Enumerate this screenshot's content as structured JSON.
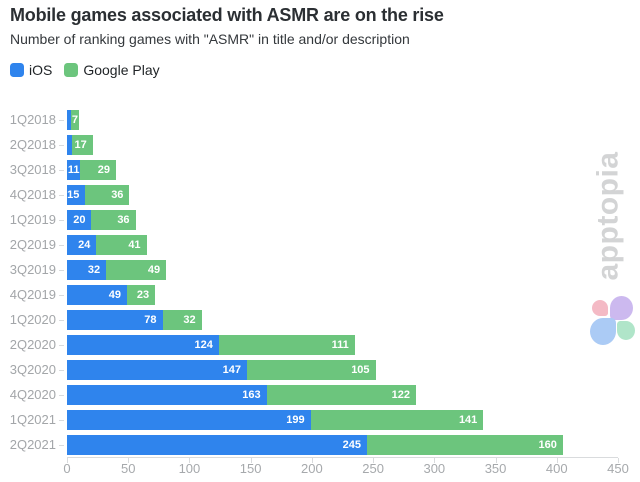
{
  "header": {
    "title": "Mobile games associated with ASMR are on the rise",
    "subtitle": "Number of ranking games with \"ASMR\" in title and/or description"
  },
  "legend": {
    "items": [
      {
        "label": "iOS",
        "color": "#2f84ed"
      },
      {
        "label": "Google Play",
        "color": "#6cc57d"
      }
    ]
  },
  "watermark": {
    "text": "apptopia",
    "text_color": "#d3d4d5",
    "logo_petal_colors": {
      "top_left": "#f4bac5",
      "top_right": "#ccb9ef",
      "bottom_left": "#abcbf5",
      "bottom_right": "#b0e5c9"
    }
  },
  "chart_data": {
    "type": "bar",
    "orientation": "horizontal",
    "stacked": true,
    "title": "Mobile games associated with ASMR are on the rise",
    "subtitle": "Number of ranking games with \"ASMR\" in title and/or description",
    "categories": [
      "1Q2018",
      "2Q2018",
      "3Q2018",
      "4Q2018",
      "1Q2019",
      "2Q2019",
      "3Q2019",
      "4Q2019",
      "1Q2020",
      "2Q2020",
      "3Q2020",
      "4Q2020",
      "1Q2021",
      "2Q2021"
    ],
    "series": [
      {
        "name": "iOS",
        "color": "#2f84ed",
        "values": [
          3,
          4,
          11,
          15,
          20,
          24,
          32,
          49,
          78,
          124,
          147,
          163,
          199,
          245
        ]
      },
      {
        "name": "Google Play",
        "color": "#6cc57d",
        "values": [
          7,
          17,
          29,
          36,
          36,
          41,
          49,
          23,
          32,
          111,
          105,
          122,
          141,
          160
        ]
      }
    ],
    "xlim": [
      0,
      450
    ],
    "x_ticks": [
      0,
      50,
      100,
      150,
      200,
      250,
      300,
      350,
      400,
      450
    ],
    "grid": false,
    "legend_position": "top-left",
    "value_labels": "white bold numbers right-aligned inside each segment; omitted where the segment is too narrow (iOS 1Q2018 and 2Q2018)"
  }
}
